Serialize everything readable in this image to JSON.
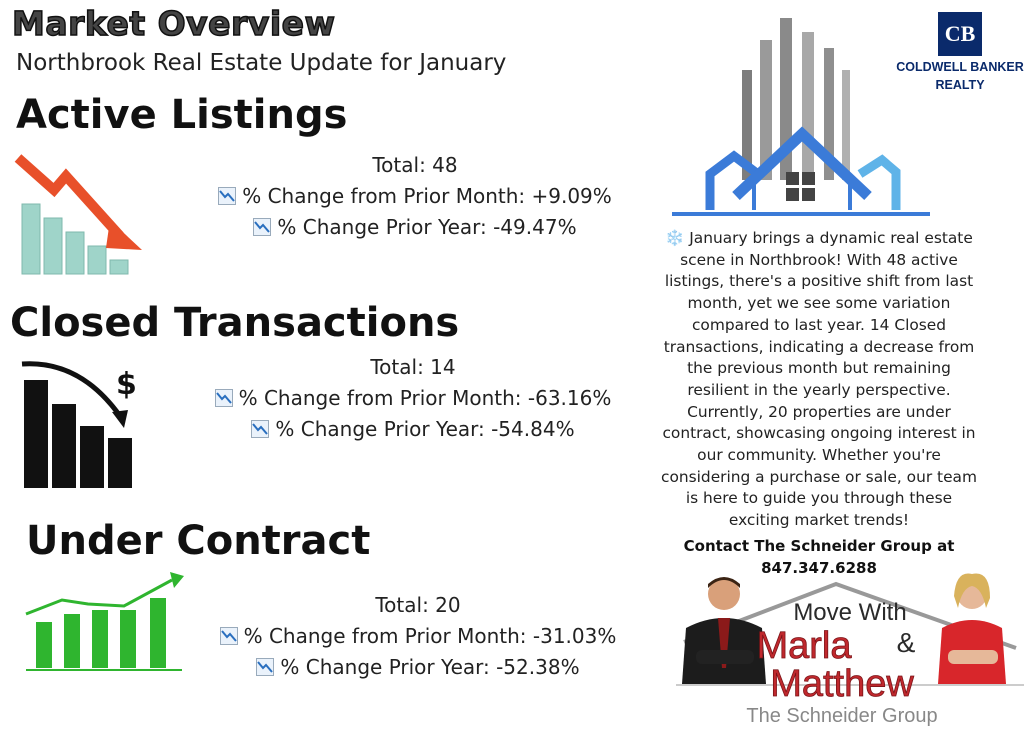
{
  "header": {
    "title": "Market Overview",
    "subtitle": "Northbrook Real Estate Update for January"
  },
  "sections": [
    {
      "heading": "Active Listings",
      "total": "Total: 48",
      "month_change": "% Change from Prior Month: +9.09%",
      "year_change": "% Change Prior Year: -49.47%",
      "icon": "declining-bar-chart-icon"
    },
    {
      "heading": "Closed Transactions",
      "total": "Total: 14",
      "month_change": "% Change from Prior Month: -63.16%",
      "year_change": "% Change Prior Year: -54.84%",
      "icon": "declining-dollar-chart-icon"
    },
    {
      "heading": "Under Contract",
      "total": "Total: 20",
      "month_change": "% Change from Prior Month: -31.03%",
      "year_change": "% Change Prior Year: -52.38%",
      "icon": "rising-bar-chart-icon"
    }
  ],
  "brand": {
    "logo_initials": "CB",
    "logo_line1": "COLDWELL BANKER",
    "logo_line2": "REALTY"
  },
  "summary": {
    "paragraph": "❄️ January brings a dynamic real estate scene in Northbrook! With 48 active listings, there's a positive shift from last month, yet we see some variation compared to last year. 14 Closed transactions, indicating a decrease from the previous month but remaining resilient in the yearly perspective. Currently, 20 properties are under contract, showcasing ongoing interest in our community. Whether you're considering a purchase or sale, our team is here to guide you through these exciting market trends!",
    "contact_line1": "Contact The Schneider Group at",
    "contact_phone": "847.347.6288"
  },
  "team_banner": {
    "line1": "Move With",
    "name1": "Marla",
    "amp": "&",
    "name2": "Matthew",
    "group": "The Schneider Group"
  },
  "colors": {
    "red_arrow": "#e8502a",
    "teal_bars": "#9fd4c9",
    "green": "#2fb52f",
    "navy": "#0a2a6b",
    "blue_house": "#3b7bd8",
    "banner_red": "#c0282d"
  }
}
